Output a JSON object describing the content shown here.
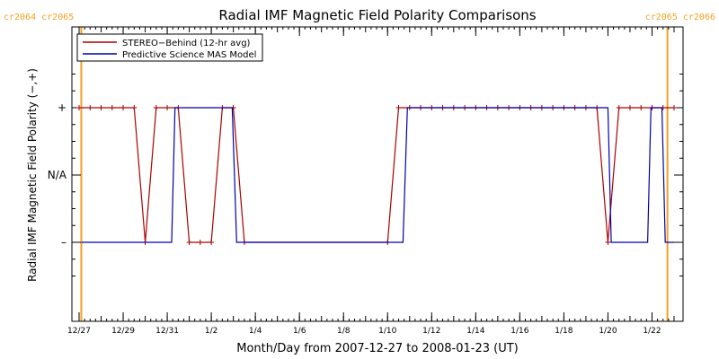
{
  "chart_data": {
    "type": "line",
    "title": "Radial IMF Magnetic Field Polarity Comparisons",
    "xlabel": "Month/Day from 2007-12-27 to 2008-01-23 (UT)",
    "ylabel": "Radial IMF Magnetic Field Polarity (−,+)",
    "x_units": "days since 2007-12-27 00:00 UT",
    "xlim": [
      0,
      27
    ],
    "ylim": [
      -1.5,
      1.5
    ],
    "y_ticks": [
      {
        "value": 1,
        "label": "+"
      },
      {
        "value": 0,
        "label": "N/A"
      },
      {
        "value": -1,
        "label": "–"
      }
    ],
    "x_ticks": [
      {
        "value": 0,
        "label": "12/27"
      },
      {
        "value": 2,
        "label": "12/29"
      },
      {
        "value": 4,
        "label": "12/31"
      },
      {
        "value": 6,
        "label": "1/2"
      },
      {
        "value": 8,
        "label": "1/4"
      },
      {
        "value": 10,
        "label": "1/6"
      },
      {
        "value": 12,
        "label": "1/8"
      },
      {
        "value": 14,
        "label": "1/10"
      },
      {
        "value": 16,
        "label": "1/12"
      },
      {
        "value": 18,
        "label": "1/14"
      },
      {
        "value": 20,
        "label": "1/16"
      },
      {
        "value": 22,
        "label": "1/18"
      },
      {
        "value": 24,
        "label": "1/20"
      },
      {
        "value": 26,
        "label": "1/22"
      }
    ],
    "minor_tick_step": 0.25,
    "legend_position": "top-left",
    "carrington_markers": [
      {
        "x": 0.1,
        "label": "cr2064 cr2065",
        "anchor": "start"
      },
      {
        "x": 26.7,
        "label": "cr2065 cr2066",
        "anchor": "end"
      }
    ],
    "marker_color": "#f5a020",
    "series": [
      {
        "name": "STEREO−Behind (12-hr avg)",
        "color": "#aa0000",
        "marker": "plus",
        "x": [
          0.0,
          0.5,
          1.0,
          1.5,
          2.0,
          2.5,
          3.0,
          3.5,
          4.0,
          4.5,
          5.0,
          5.5,
          6.0,
          6.5,
          7.0,
          7.5,
          14.0,
          14.5,
          15.0,
          15.5,
          16.0,
          16.5,
          17.0,
          17.5,
          18.0,
          18.5,
          19.0,
          19.5,
          20.0,
          20.5,
          21.0,
          21.5,
          22.0,
          22.5,
          23.0,
          23.5,
          24.0,
          24.5,
          25.0,
          25.5,
          26.0,
          26.5,
          27.0
        ],
        "values": [
          1,
          1,
          1,
          1,
          1,
          1,
          -1,
          1,
          1,
          1,
          -1,
          -1,
          -1,
          1,
          1,
          -1,
          -1,
          1,
          1,
          1,
          1,
          1,
          1,
          1,
          1,
          1,
          1,
          1,
          1,
          1,
          1,
          1,
          1,
          1,
          1,
          1,
          -1,
          1,
          1,
          1,
          1,
          1,
          1
        ]
      },
      {
        "name": "Predictive Science MAS Model",
        "color": "#0000aa",
        "marker": "none",
        "x": [
          0.1,
          4.2,
          4.35,
          6.95,
          7.15,
          14.7,
          14.9,
          24.0,
          24.15,
          25.8,
          25.95,
          26.45,
          26.6,
          27.0
        ],
        "values": [
          -1,
          -1,
          1,
          1,
          -1,
          -1,
          1,
          1,
          -1,
          -1,
          1,
          1,
          -1,
          -1
        ]
      }
    ]
  }
}
